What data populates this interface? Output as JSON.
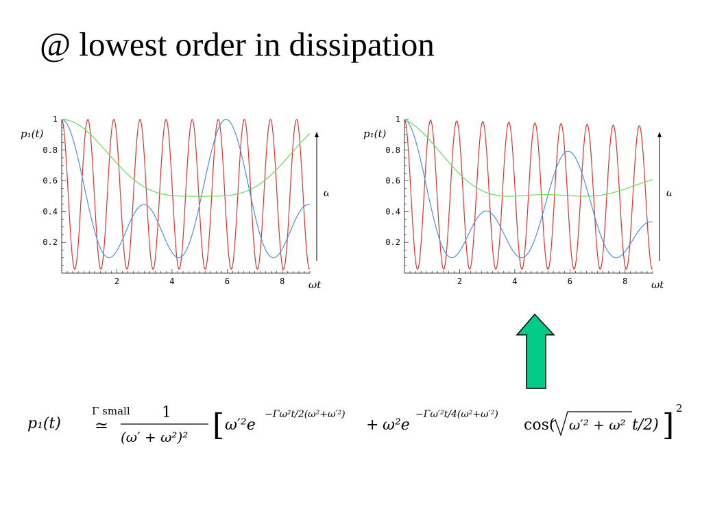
{
  "slide": {
    "title": "@ lowest order in dissipation"
  },
  "chart_data": [
    {
      "type": "line",
      "title": "",
      "ylabel": "p₁(t)",
      "xlabel": "ωt",
      "arrow_label": "ω′",
      "xlim": [
        0,
        9
      ],
      "ylim": [
        0,
        1
      ],
      "x_ticks": [
        "2",
        "4",
        "6",
        "8"
      ],
      "y_ticks": [
        "0.2",
        "0.4",
        "0.6",
        "0.8",
        "1"
      ],
      "grid": false,
      "series": [
        {
          "color": "#e03030",
          "A": 1.0,
          "B": 0.975,
          "alpha": 0,
          "beta": 0,
          "k": 3.32
        },
        {
          "color": "#4a8fe0",
          "A": 0.81,
          "B": 0.9,
          "alpha": 0,
          "beta": 0,
          "k": 1.054
        },
        {
          "color": "#66dd55",
          "A": 0.5,
          "B": 0.5,
          "alpha": 0,
          "beta": 0,
          "k": 0.628
        }
      ]
    },
    {
      "type": "line",
      "title": "",
      "ylabel": "p₁(t)",
      "xlabel": "ωt",
      "arrow_label": "ω′",
      "xlim": [
        0,
        9
      ],
      "ylim": [
        0,
        1
      ],
      "x_ticks": [
        "2",
        "4",
        "6",
        "8"
      ],
      "y_ticks": [
        "0.2",
        "0.4",
        "0.6",
        "0.8",
        "1"
      ],
      "grid": false,
      "series": [
        {
          "color": "#e03030",
          "A": 1.0,
          "B": 0.975,
          "alpha": 0.0025,
          "beta": 0.0025,
          "k": 3.32
        },
        {
          "color": "#4a8fe0",
          "A": 0.81,
          "B": 0.9,
          "alpha": 0.022,
          "beta": 0.022,
          "k": 1.054
        },
        {
          "color": "#66dd55",
          "A": 0.5,
          "B": 0.5,
          "alpha": 0.12,
          "beta": 0.035,
          "k": 0.628
        }
      ]
    }
  ],
  "annotation": {
    "arrow_color": "#00cc88",
    "arrow_stroke": "#000000"
  },
  "formula": {
    "lhs": "p₁(t)",
    "relation_top": "Γ small",
    "relation": "≃",
    "numerator": "1",
    "denominator": "(ω′ + ω²)²",
    "bracket_open": "[",
    "term1_base": "ω′²e",
    "term1_exp": "−Γω²t/2(ω²+ω′²)",
    "plus": "+",
    "term2_base": "ω²e",
    "term2_exp": "−Γω′²t/4(ω²+ω′²)",
    "cos_open": "cos(",
    "sqrt_content": "ω′² + ω²",
    "cos_tail": "t/2)",
    "bracket_close": "]",
    "power": "2"
  }
}
